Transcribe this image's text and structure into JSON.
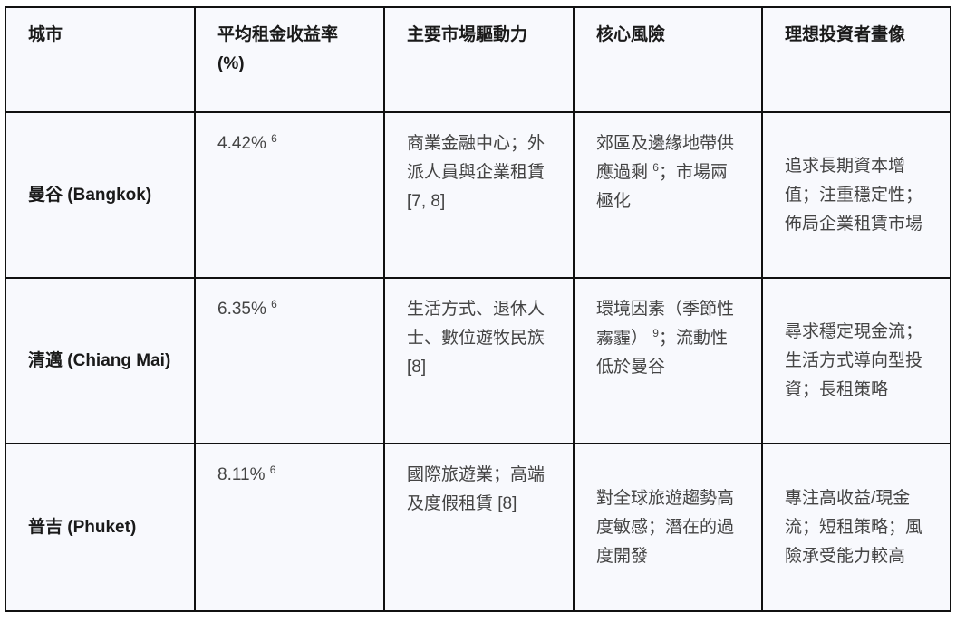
{
  "headers": [
    "城市",
    "平均租金收益率 (%)",
    "主要市場驅動力",
    "核心風險",
    "理想投資者畫像"
  ],
  "rows": [
    {
      "city": "曼谷 (Bangkok)",
      "yield": "4.42%",
      "yield_ref": "6",
      "drivers": "商業金融中心；外派人員與企業租賃 [7, 8]",
      "risk_a": "郊區及邊緣地帶供應過剩",
      "risk_ref": "6",
      "risk_b": "；市場兩極化",
      "investor": "追求長期資本增值；注重穩定性；佈局企業租賃市場"
    },
    {
      "city": "清邁 (Chiang Mai)",
      "yield": "6.35%",
      "yield_ref": "6",
      "drivers": "生活方式、退休人士、數位遊牧民族 [8]",
      "risk_a": "環境因素（季節性霧霾）",
      "risk_ref": "9",
      "risk_b": "；流動性低於曼谷",
      "investor": "尋求穩定現金流；生活方式導向型投資；長租策略"
    },
    {
      "city": "普吉 (Phuket)",
      "yield": "8.11%",
      "yield_ref": "6",
      "drivers": "國際旅遊業；高端及度假租賃 [8]",
      "risk_a": "對全球旅遊趨勢高度敏感；潛在的過度開發",
      "risk_ref": "",
      "risk_b": "",
      "investor": "專注高收益/現金流；短租策略；風險承受能力較高"
    }
  ]
}
